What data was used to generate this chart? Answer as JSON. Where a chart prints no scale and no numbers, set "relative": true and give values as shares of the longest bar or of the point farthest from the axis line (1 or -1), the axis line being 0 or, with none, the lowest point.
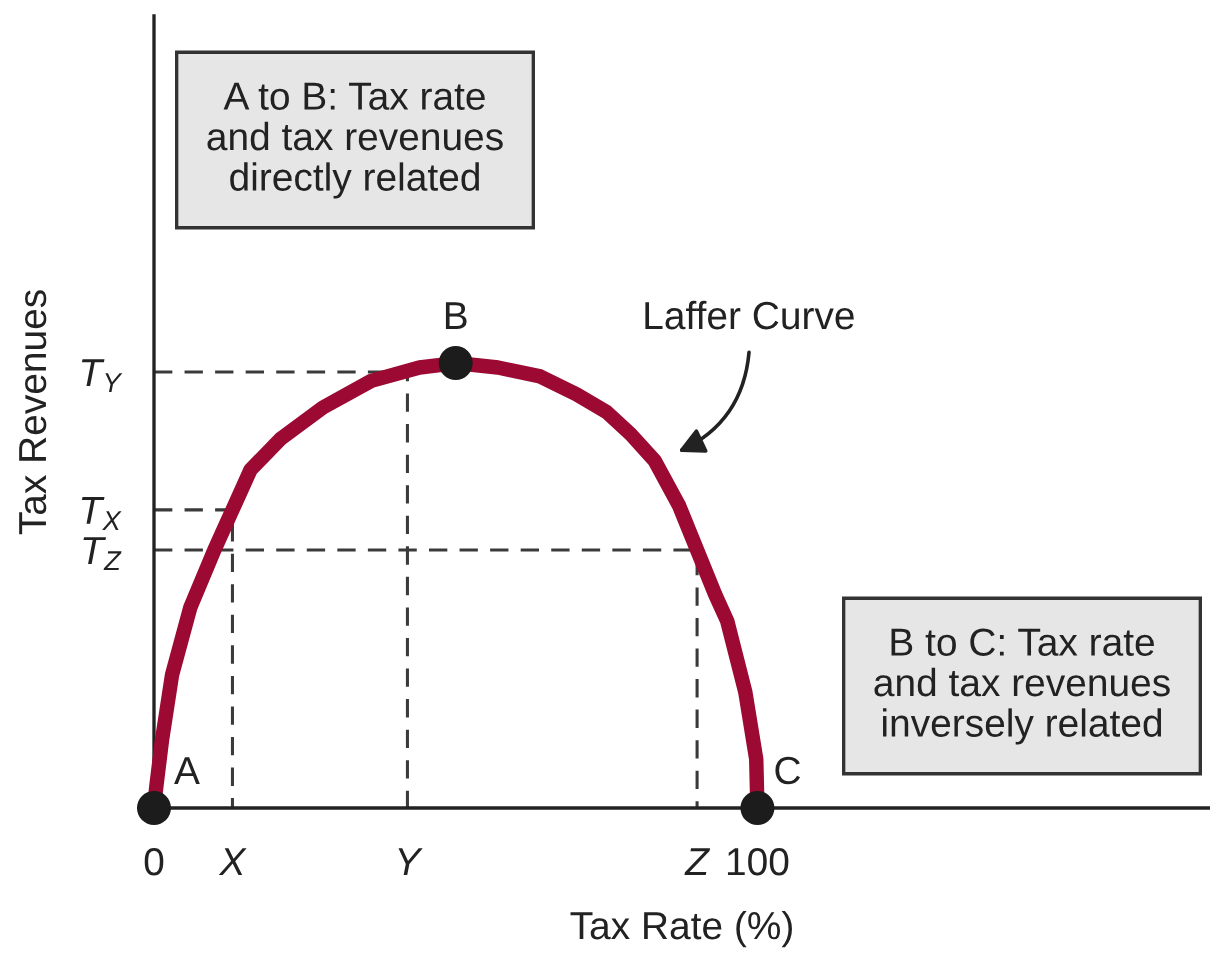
{
  "chart_data": {
    "type": "line",
    "xlabel": "Tax Rate (%)",
    "ylabel": "Tax Revenues",
    "relative": true,
    "xlim": [
      0,
      175
    ],
    "xticks": [
      0,
      {
        "value": 13,
        "label": "X"
      },
      {
        "value": 42,
        "label": "Y"
      },
      {
        "value": 90,
        "label": "Z"
      },
      100
    ],
    "series": [
      {
        "line_style": "dashed",
        "color": "#3a3a3a",
        "x": [
          0,
          42,
          42
        ],
        "values": [
          0.98,
          0.98,
          0
        ]
      },
      {
        "line_style": "dashed",
        "color": "#3a3a3a",
        "x": [
          0,
          13,
          13
        ],
        "values": [
          0.67,
          0.67,
          0
        ]
      },
      {
        "line_style": "dashed",
        "color": "#3a3a3a",
        "x": [
          0,
          90,
          90
        ],
        "values": [
          0.58,
          0.58,
          0
        ]
      },
      {
        "name": "Laffer Curve",
        "line_style": "solid",
        "color": "#9c0a33",
        "x": [
          0,
          0.4,
          1.3,
          3,
          6,
          10,
          13,
          16,
          21,
          28,
          36,
          44,
          50,
          57,
          64,
          70,
          75,
          79,
          83,
          87,
          90,
          93,
          95,
          98,
          99.8,
          100
        ],
        "values": [
          0,
          0.05,
          0.15,
          0.3,
          0.45,
          0.58,
          0.67,
          0.76,
          0.83,
          0.9,
          0.96,
          0.99,
          1,
          0.99,
          0.97,
          0.93,
          0.89,
          0.84,
          0.78,
          0.68,
          0.58,
          0.48,
          0.42,
          0.26,
          0.11,
          0
        ]
      },
      {
        "type": "scatter",
        "marker": "circle",
        "color": "#1c1c1c",
        "x": [
          0,
          50,
          100
        ],
        "values": [
          0,
          1,
          0
        ]
      }
    ],
    "annotations": [
      "A to B: Tax rate\nand tax revenues\ndirectly related",
      "B to C: Tax rate\nand tax revenues\ninversely related",
      {
        "text": "A",
        "x": 0,
        "y": 0
      },
      {
        "text": "B",
        "x": 50,
        "y": 1
      },
      {
        "text": "C",
        "x": 100,
        "y": 0
      },
      {
        "text": "T$_{Y}$",
        "x": 0,
        "y": 0.98
      },
      {
        "text": "T$_{X}$",
        "x": 0,
        "y": 0.67
      },
      {
        "text": "T$_{Z}$",
        "x": 0,
        "y": 0.58
      }
    ]
  }
}
